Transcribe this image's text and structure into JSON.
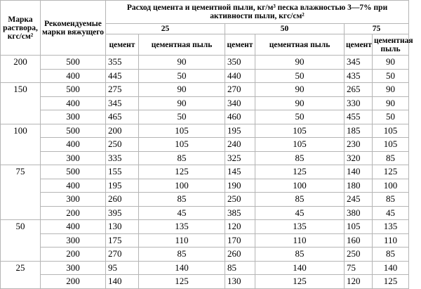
{
  "table": {
    "header": {
      "grade": "Марка раствора, кгс/см²",
      "binder": "Рекомендуемые марки вяжущего",
      "consumption": "Расход цемента и цементной пыли, кг/м³ песка влажностью 3—7% при активности пыли, кгс/см²",
      "activity": [
        "25",
        "50",
        "75"
      ],
      "sub": [
        "цемент",
        "цементная пыль",
        "цемент",
        "цементная пыль",
        "цемент",
        "цементная пыль"
      ]
    },
    "groups": [
      {
        "grade": 200,
        "rows": [
          [
            500,
            355,
            90,
            350,
            90,
            345,
            90
          ],
          [
            400,
            445,
            50,
            440,
            50,
            435,
            50
          ]
        ]
      },
      {
        "grade": 150,
        "rows": [
          [
            500,
            275,
            90,
            270,
            90,
            265,
            90
          ],
          [
            400,
            345,
            90,
            340,
            90,
            330,
            90
          ],
          [
            300,
            465,
            50,
            460,
            50,
            455,
            50
          ]
        ]
      },
      {
        "grade": 100,
        "rows": [
          [
            500,
            200,
            105,
            195,
            105,
            185,
            105
          ],
          [
            400,
            250,
            105,
            240,
            105,
            230,
            105
          ],
          [
            300,
            335,
            85,
            325,
            85,
            320,
            85
          ]
        ]
      },
      {
        "grade": 75,
        "rows": [
          [
            500,
            155,
            125,
            145,
            125,
            140,
            125
          ],
          [
            400,
            195,
            100,
            190,
            100,
            180,
            100
          ],
          [
            300,
            260,
            85,
            250,
            85,
            245,
            85
          ],
          [
            200,
            395,
            45,
            385,
            45,
            380,
            45
          ]
        ]
      },
      {
        "grade": 50,
        "rows": [
          [
            400,
            130,
            135,
            120,
            135,
            105,
            135
          ],
          [
            300,
            175,
            110,
            170,
            110,
            160,
            110
          ],
          [
            200,
            270,
            85,
            260,
            85,
            250,
            85
          ]
        ]
      },
      {
        "grade": 25,
        "rows": [
          [
            300,
            95,
            140,
            85,
            140,
            75,
            140
          ],
          [
            200,
            140,
            125,
            130,
            125,
            120,
            125
          ]
        ]
      }
    ]
  }
}
